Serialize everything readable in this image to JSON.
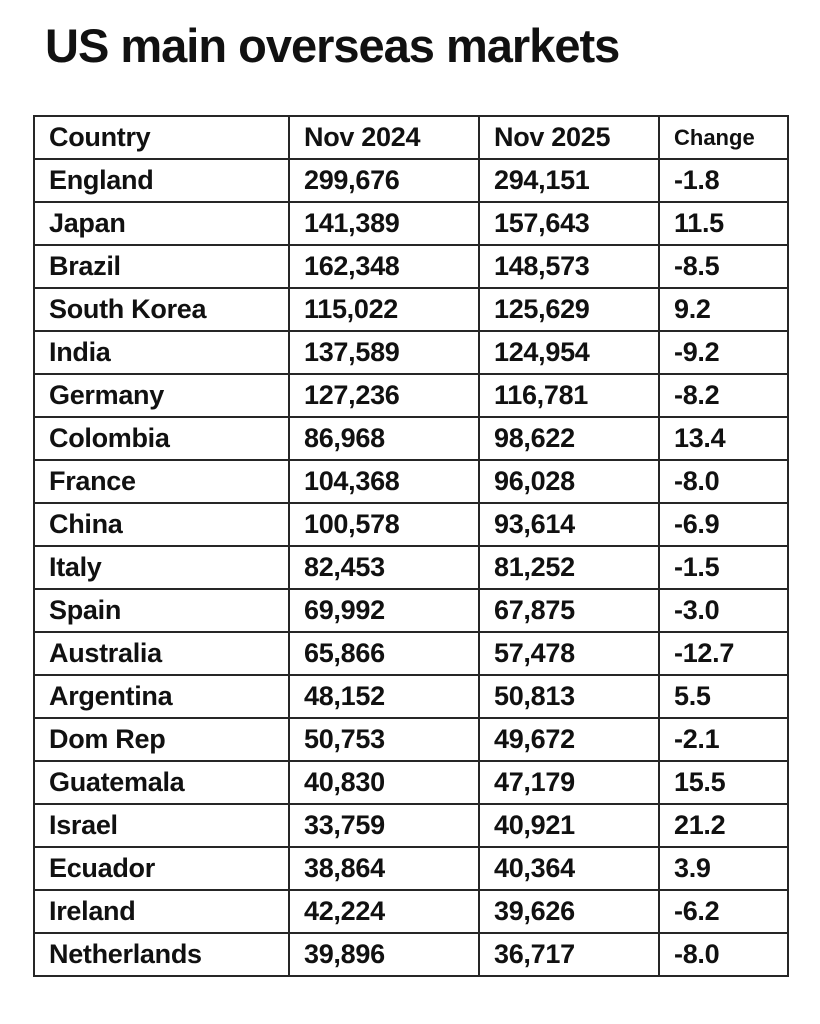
{
  "page": {
    "title": "US main overseas markets"
  },
  "table": {
    "headers": [
      {
        "label": "Country"
      },
      {
        "label": "Nov 2024"
      },
      {
        "label": "Nov 2025"
      },
      {
        "label": "Change"
      }
    ],
    "rows": [
      {
        "country": "England",
        "nov_2024": "299,676",
        "nov_2025": "294,151",
        "change": "-1.8"
      },
      {
        "country": "Japan",
        "nov_2024": "141,389",
        "nov_2025": "157,643",
        "change": "11.5"
      },
      {
        "country": "Brazil",
        "nov_2024": "162,348",
        "nov_2025": "148,573",
        "change": "-8.5"
      },
      {
        "country": "South Korea",
        "nov_2024": "115,022",
        "nov_2025": "125,629",
        "change": "9.2"
      },
      {
        "country": "India",
        "nov_2024": "137,589",
        "nov_2025": "124,954",
        "change": "-9.2"
      },
      {
        "country": "Germany",
        "nov_2024": "127,236",
        "nov_2025": "116,781",
        "change": "-8.2"
      },
      {
        "country": "Colombia",
        "nov_2024": "86,968",
        "nov_2025": "98,622",
        "change": "13.4"
      },
      {
        "country": "France",
        "nov_2024": "104,368",
        "nov_2025": "96,028",
        "change": "-8.0"
      },
      {
        "country": "China",
        "nov_2024": "100,578",
        "nov_2025": "93,614",
        "change": "-6.9"
      },
      {
        "country": "Italy",
        "nov_2024": "82,453",
        "nov_2025": "81,252",
        "change": "-1.5"
      },
      {
        "country": "Spain",
        "nov_2024": "69,992",
        "nov_2025": "67,875",
        "change": "-3.0"
      },
      {
        "country": "Australia",
        "nov_2024": "65,866",
        "nov_2025": "57,478",
        "change": "-12.7"
      },
      {
        "country": "Argentina",
        "nov_2024": "48,152",
        "nov_2025": "50,813",
        "change": "5.5"
      },
      {
        "country": "Dom Rep",
        "nov_2024": "50,753",
        "nov_2025": "49,672",
        "change": "-2.1"
      },
      {
        "country": "Guatemala",
        "nov_2024": "40,830",
        "nov_2025": "47,179",
        "change": "15.5"
      },
      {
        "country": "Israel",
        "nov_2024": "33,759",
        "nov_2025": "40,921",
        "change": "21.2"
      },
      {
        "country": "Ecuador",
        "nov_2024": "38,864",
        "nov_2025": "40,364",
        "change": "3.9"
      },
      {
        "country": "Ireland",
        "nov_2024": "42,224",
        "nov_2025": "39,626",
        "change": "-6.2"
      },
      {
        "country": "Netherlands",
        "nov_2024": "39,896",
        "nov_2025": "36,717",
        "change": "-8.0"
      }
    ]
  },
  "chart_data": {
    "type": "table",
    "title": "US main overseas markets",
    "columns": [
      "Country",
      "Nov 2024",
      "Nov 2025",
      "Change"
    ],
    "rows": [
      [
        "England",
        299676,
        294151,
        -1.8
      ],
      [
        "Japan",
        141389,
        157643,
        11.5
      ],
      [
        "Brazil",
        162348,
        148573,
        -8.5
      ],
      [
        "South Korea",
        115022,
        125629,
        9.2
      ],
      [
        "India",
        137589,
        124954,
        -9.2
      ],
      [
        "Germany",
        127236,
        116781,
        -8.2
      ],
      [
        "Colombia",
        86968,
        98622,
        13.4
      ],
      [
        "France",
        104368,
        96028,
        -8.0
      ],
      [
        "China",
        100578,
        93614,
        -6.9
      ],
      [
        "Italy",
        82453,
        81252,
        -1.5
      ],
      [
        "Spain",
        69992,
        67875,
        -3.0
      ],
      [
        "Australia",
        65866,
        57478,
        -12.7
      ],
      [
        "Argentina",
        48152,
        50813,
        5.5
      ],
      [
        "Dom Rep",
        50753,
        49672,
        -2.1
      ],
      [
        "Guatemala",
        40830,
        47179,
        15.5
      ],
      [
        "Israel",
        33759,
        40921,
        21.2
      ],
      [
        "Ecuador",
        38864,
        40364,
        3.9
      ],
      [
        "Ireland",
        42224,
        39626,
        -6.2
      ],
      [
        "Netherlands",
        39896,
        36717,
        -8.0
      ]
    ]
  },
  "colors": {
    "background": "#ffffff",
    "text": "#111111",
    "border": "#262626"
  }
}
